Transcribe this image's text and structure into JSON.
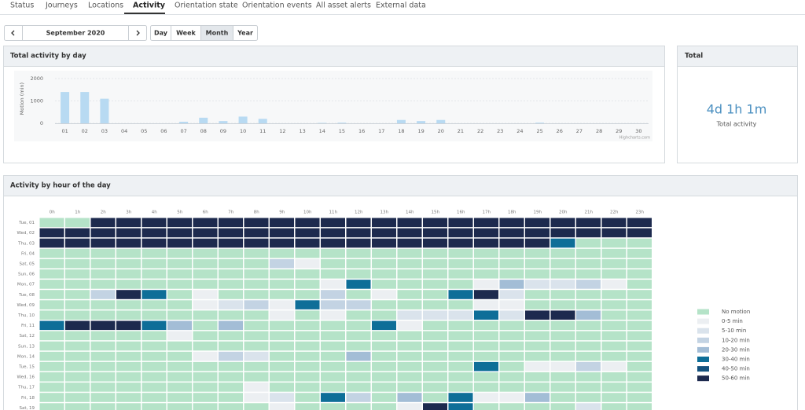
{
  "tabs": [
    "Status",
    "Journeys",
    "Locations",
    "Activity",
    "Orientation state",
    "Orientation events",
    "All asset alerts",
    "External data"
  ],
  "toolbar": {
    "period": "September 2020",
    "views": [
      "Day",
      "Week",
      "Month",
      "Year"
    ]
  },
  "panels": {
    "daily": "Total activity by day",
    "total": "Total",
    "hourly": "Activity by hour of the day"
  },
  "total": {
    "value": "4d 1h 1m",
    "label": "Total activity"
  },
  "chart_data": [
    {
      "type": "bar",
      "y_label": "Motion (min)",
      "credit": "Highcharts.com",
      "color": "#b8daf2",
      "categories": [
        "01",
        "02",
        "03",
        "04",
        "05",
        "06",
        "07",
        "08",
        "09",
        "10",
        "11",
        "12",
        "13",
        "14",
        "15",
        "16",
        "17",
        "18",
        "19",
        "20",
        "21",
        "22",
        "23",
        "24",
        "25",
        "26",
        "27",
        "28",
        "29",
        "30"
      ],
      "values": [
        1400,
        1400,
        1100,
        0,
        0,
        0,
        70,
        250,
        100,
        300,
        200,
        0,
        0,
        20,
        30,
        0,
        0,
        150,
        100,
        150,
        0,
        0,
        0,
        0,
        30,
        0,
        0,
        0,
        0,
        0
      ],
      "ylim": [
        0,
        2200
      ],
      "yticks": [
        0,
        1000,
        2000
      ],
      "grid": true
    },
    {
      "type": "heatmap",
      "categories": [
        "0h",
        "1h",
        "2h",
        "3h",
        "4h",
        "5h",
        "6h",
        "7h",
        "8h",
        "9h",
        "10h",
        "11h",
        "12h",
        "13h",
        "14h",
        "15h",
        "16h",
        "17h",
        "18h",
        "19h",
        "20h",
        "21h",
        "22h",
        "23h"
      ],
      "rows": [
        "Tue, 01",
        "Wed, 02",
        "Thu, 03",
        "Fri, 04",
        "Sat, 05",
        "Sun, 06",
        "Mon, 07",
        "Tue, 08",
        "Wed, 09",
        "Thu, 10",
        "Fri, 11",
        "Sat, 12",
        "Sun, 13",
        "Mon, 14",
        "Tue, 15",
        "Wed, 16",
        "Thu, 17",
        "Fri, 18",
        "Sat, 19"
      ],
      "classes": [
        {
          "name": "No motion",
          "color": "#b5e3c8",
          "min": 0,
          "max": 0
        },
        {
          "name": "0-5 min",
          "color": "#eceff2",
          "min": 0,
          "max": 5
        },
        {
          "name": "5-10 min",
          "color": "#dae3ec",
          "min": 5,
          "max": 10
        },
        {
          "name": "10-20 min",
          "color": "#c3d3e3",
          "min": 10,
          "max": 20
        },
        {
          "name": "20-30 min",
          "color": "#a3bdd6",
          "min": 20,
          "max": 30
        },
        {
          "name": "30-40 min",
          "color": "#0e6e98",
          "min": 30,
          "max": 40
        },
        {
          "name": "40-50 min",
          "color": "#14527e",
          "min": 40,
          "max": 50
        },
        {
          "name": "50-60 min",
          "color": "#1d2a4e",
          "min": 50,
          "max": 60
        }
      ],
      "values": [
        [
          0,
          0,
          55,
          55,
          55,
          55,
          55,
          55,
          55,
          55,
          55,
          55,
          55,
          55,
          55,
          55,
          55,
          55,
          55,
          55,
          55,
          55,
          55,
          55
        ],
        [
          55,
          55,
          55,
          55,
          55,
          55,
          55,
          55,
          55,
          55,
          55,
          55,
          55,
          55,
          55,
          55,
          55,
          55,
          55,
          55,
          55,
          55,
          55,
          55
        ],
        [
          55,
          55,
          55,
          55,
          55,
          55,
          55,
          55,
          55,
          55,
          55,
          55,
          55,
          55,
          55,
          55,
          55,
          55,
          55,
          55,
          35,
          0,
          0,
          0
        ],
        [
          0,
          0,
          0,
          0,
          0,
          0,
          0,
          0,
          0,
          0,
          0,
          0,
          0,
          0,
          0,
          0,
          0,
          0,
          0,
          0,
          0,
          0,
          0,
          0
        ],
        [
          0,
          0,
          0,
          0,
          0,
          0,
          0,
          0,
          0,
          15,
          3,
          0,
          0,
          0,
          0,
          0,
          0,
          0,
          0,
          0,
          0,
          0,
          0,
          0
        ],
        [
          0,
          0,
          0,
          0,
          0,
          0,
          0,
          0,
          0,
          0,
          0,
          0,
          0,
          0,
          0,
          0,
          0,
          0,
          0,
          0,
          0,
          0,
          0,
          0
        ],
        [
          0,
          0,
          0,
          0,
          0,
          0,
          0,
          0,
          0,
          0,
          0,
          3,
          35,
          0,
          0,
          0,
          0,
          3,
          25,
          8,
          8,
          15,
          3,
          0
        ],
        [
          0,
          0,
          15,
          55,
          35,
          0,
          3,
          0,
          0,
          0,
          0,
          15,
          0,
          3,
          0,
          0,
          35,
          55,
          8,
          0,
          0,
          0,
          0,
          0
        ],
        [
          0,
          0,
          0,
          0,
          0,
          0,
          3,
          8,
          15,
          3,
          35,
          15,
          15,
          0,
          0,
          0,
          0,
          3,
          3,
          0,
          0,
          0,
          0,
          0
        ],
        [
          0,
          0,
          0,
          0,
          0,
          0,
          0,
          0,
          0,
          3,
          0,
          3,
          0,
          0,
          8,
          8,
          8,
          35,
          8,
          55,
          55,
          25,
          0,
          0
        ],
        [
          35,
          55,
          55,
          55,
          35,
          25,
          0,
          25,
          0,
          0,
          0,
          0,
          0,
          35,
          3,
          0,
          0,
          0,
          0,
          0,
          0,
          0,
          0,
          0
        ],
        [
          0,
          0,
          0,
          0,
          0,
          3,
          0,
          0,
          0,
          0,
          0,
          0,
          0,
          0,
          0,
          0,
          0,
          0,
          0,
          0,
          0,
          0,
          0,
          0
        ],
        [
          0,
          0,
          0,
          0,
          0,
          0,
          0,
          0,
          0,
          0,
          0,
          0,
          0,
          0,
          0,
          0,
          0,
          0,
          0,
          0,
          0,
          0,
          0,
          0
        ],
        [
          0,
          0,
          0,
          0,
          0,
          0,
          3,
          15,
          8,
          0,
          0,
          0,
          25,
          0,
          0,
          0,
          0,
          0,
          0,
          0,
          0,
          0,
          0,
          0
        ],
        [
          0,
          0,
          0,
          0,
          0,
          0,
          0,
          0,
          0,
          0,
          0,
          0,
          0,
          0,
          0,
          0,
          0,
          35,
          0,
          3,
          3,
          15,
          3,
          0
        ],
        [
          0,
          0,
          0,
          0,
          0,
          0,
          0,
          0,
          0,
          0,
          0,
          0,
          0,
          0,
          0,
          0,
          0,
          0,
          0,
          0,
          0,
          0,
          0,
          0
        ],
        [
          0,
          0,
          0,
          0,
          0,
          0,
          0,
          0,
          3,
          0,
          0,
          0,
          0,
          0,
          0,
          0,
          0,
          0,
          0,
          0,
          0,
          0,
          0,
          0
        ],
        [
          0,
          0,
          0,
          0,
          0,
          0,
          0,
          0,
          3,
          8,
          0,
          35,
          15,
          0,
          25,
          0,
          35,
          3,
          3,
          25,
          0,
          0,
          0,
          0
        ],
        [
          0,
          0,
          0,
          0,
          0,
          0,
          0,
          0,
          0,
          3,
          0,
          0,
          0,
          0,
          3,
          55,
          35,
          0,
          0,
          0,
          0,
          8,
          0,
          0
        ]
      ]
    }
  ]
}
